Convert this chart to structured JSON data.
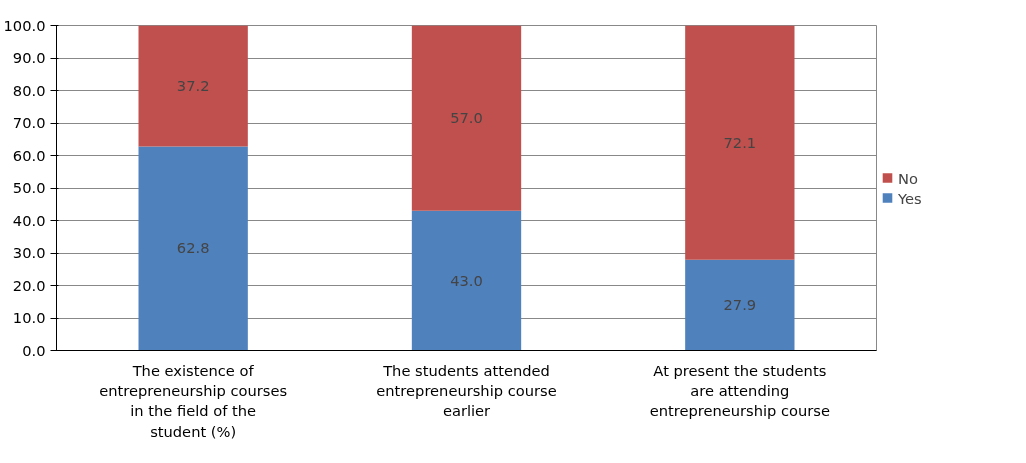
{
  "chart_data": {
    "type": "bar",
    "stacked": true,
    "categories": [
      "The existence of entrepreneurship courses in the field of the student (%)",
      "The students attended entrepreneurship course earlier",
      "At present the students are attending entrepreneurship course"
    ],
    "series": [
      {
        "name": "Yes",
        "color": "#4f81bd",
        "values": [
          62.8,
          43.0,
          27.9
        ],
        "value_labels": [
          "62.8",
          "43.0",
          "27.9"
        ]
      },
      {
        "name": "No",
        "color": "#c0504d",
        "values": [
          37.2,
          57.0,
          72.1
        ],
        "value_labels": [
          "37.2",
          "57.0",
          "72.1"
        ]
      }
    ],
    "ylim": [
      0,
      100
    ],
    "yticks": [
      {
        "value": 0,
        "label": "0.0"
      },
      {
        "value": 10,
        "label": "10.0"
      },
      {
        "value": 20,
        "label": "20.0"
      },
      {
        "value": 30,
        "label": "30.0"
      },
      {
        "value": 40,
        "label": "40.0"
      },
      {
        "value": 50,
        "label": "50.0"
      },
      {
        "value": 60,
        "label": "60.0"
      },
      {
        "value": 70,
        "label": "70.0"
      },
      {
        "value": 80,
        "label": "80.0"
      },
      {
        "value": 90,
        "label": "90.0"
      },
      {
        "value": 100,
        "label": "100.0"
      }
    ],
    "grid": "y",
    "legend": "right"
  }
}
